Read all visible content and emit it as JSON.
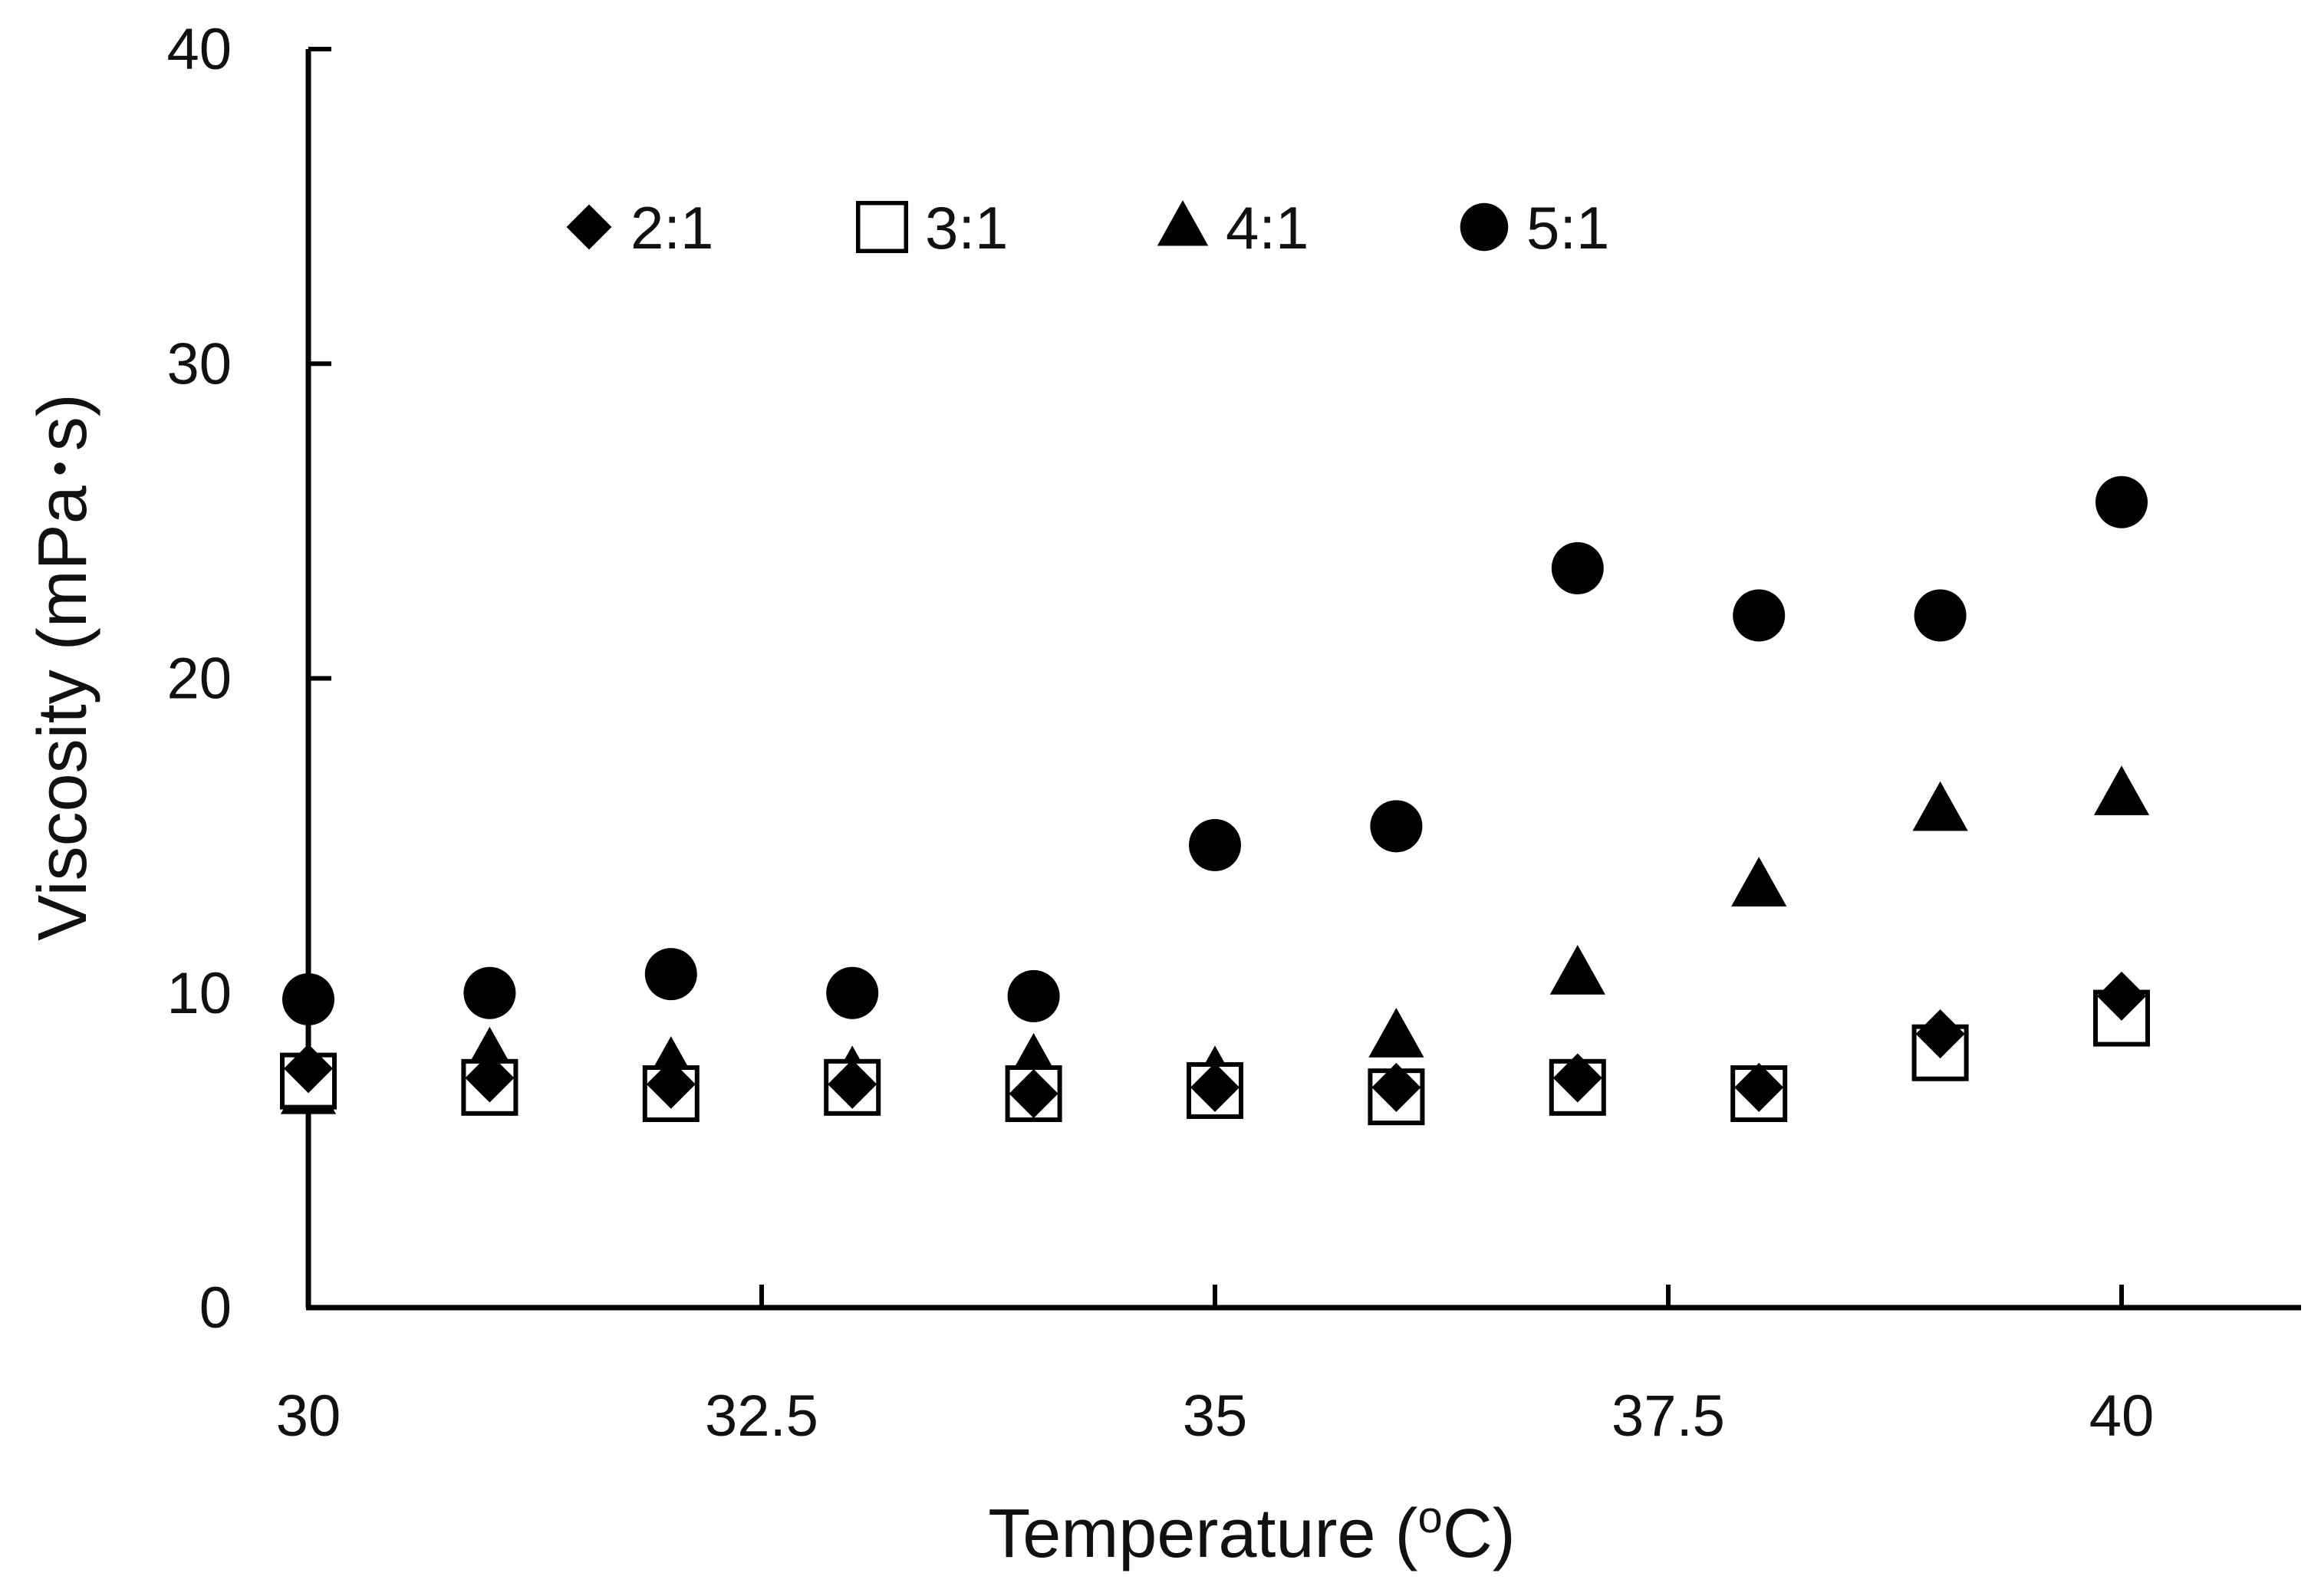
{
  "chart_data": {
    "type": "scatter",
    "xlabel": "Temperature (",
    "xlabel_sup": "o",
    "xlabel_suffix": "C)",
    "ylabel": "Viscosity (mPa･s)",
    "xlim": [
      30,
      41
    ],
    "ylim": [
      0,
      40
    ],
    "xticks": [
      30,
      32.5,
      35,
      37.5,
      40
    ],
    "yticks": [
      0,
      10,
      20,
      30,
      40
    ],
    "grid": false,
    "legend_position": "top-left",
    "colors": {
      "marker": "#000000",
      "axis": "#000000",
      "hollow_fill": "#ffffff"
    },
    "series": [
      {
        "name": "2:1",
        "marker": "filled-diamond",
        "x": [
          30,
          31,
          32,
          33,
          34,
          35,
          36,
          37,
          38,
          39,
          40
        ],
        "y": [
          7.6,
          7.3,
          7.1,
          7.1,
          6.8,
          7.0,
          7.0,
          7.3,
          7.0,
          8.7,
          9.9
        ]
      },
      {
        "name": "3:1",
        "marker": "hollow-square",
        "x": [
          30,
          31,
          32,
          33,
          34,
          35,
          36,
          37,
          38,
          39,
          40
        ],
        "y": [
          7.2,
          7.0,
          6.8,
          7.0,
          6.8,
          6.9,
          6.7,
          7.0,
          6.8,
          8.1,
          9.2
        ]
      },
      {
        "name": "4:1",
        "marker": "filled-triangle",
        "x": [
          30,
          31,
          32,
          33,
          34,
          35,
          36,
          37,
          38,
          39,
          40
        ],
        "y": [
          6.8,
          8.0,
          7.7,
          7.4,
          7.8,
          7.4,
          8.6,
          10.6,
          13.4,
          15.8,
          16.3
        ]
      },
      {
        "name": "5:1",
        "marker": "filled-circle",
        "x": [
          30,
          31,
          32,
          33,
          34,
          35,
          36,
          37,
          38,
          39,
          40
        ],
        "y": [
          9.8,
          10.0,
          10.6,
          10.0,
          9.9,
          14.7,
          15.3,
          23.5,
          22.0,
          22.0,
          25.6
        ]
      }
    ]
  }
}
